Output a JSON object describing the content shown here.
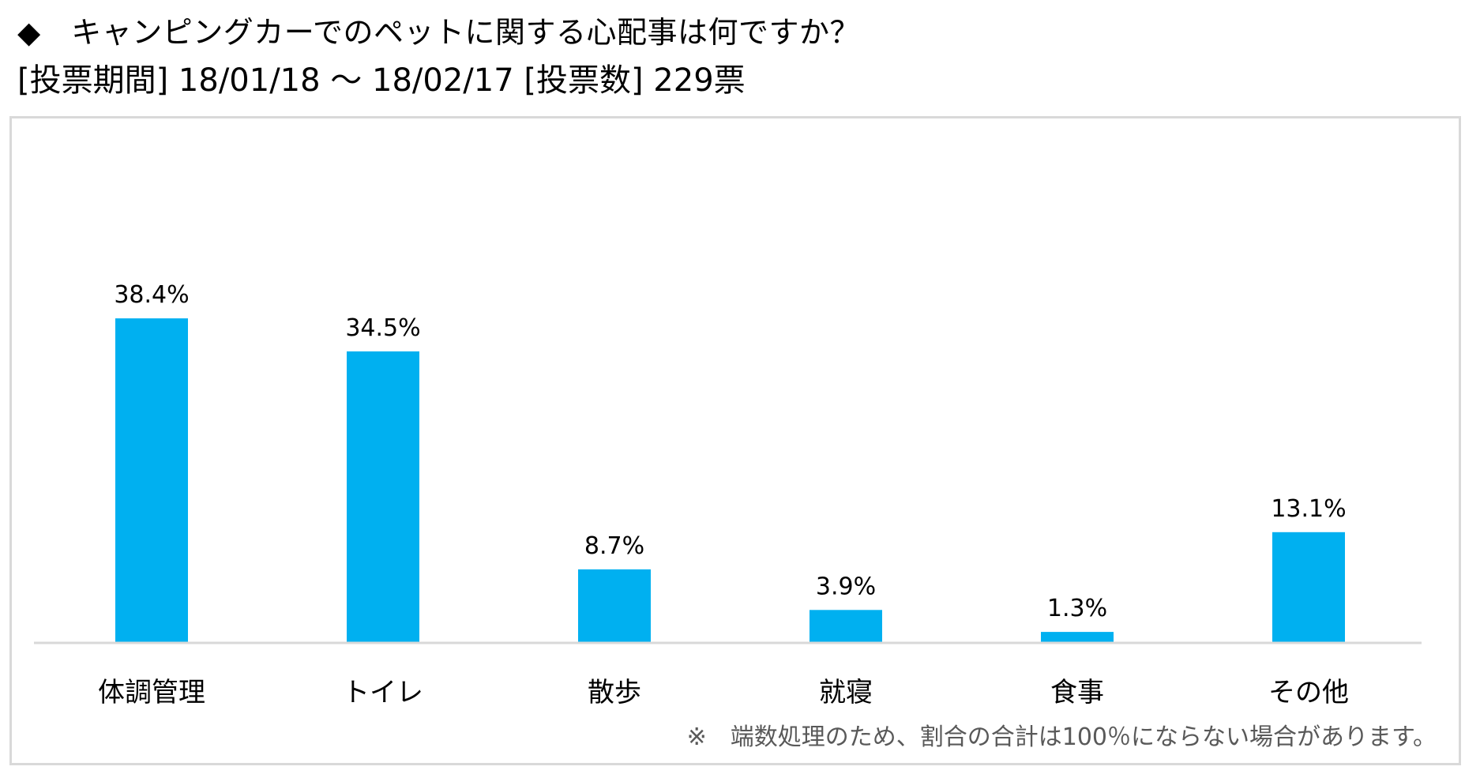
{
  "header": {
    "title_line1": "◆　キャンピングカーでのペットに関する心配事は何ですか？",
    "title_line2": "[投票期間] 18/01/18 ～ 18/02/17 [投票数] 229票"
  },
  "chart_data": {
    "type": "bar",
    "categories": [
      "体調管理",
      "トイレ",
      "散歩",
      "就寝",
      "食事",
      "その他"
    ],
    "values": [
      38.4,
      34.5,
      8.7,
      3.9,
      1.3,
      13.1
    ],
    "data_labels": [
      "38.4%",
      "34.5%",
      "8.7%",
      "3.9%",
      "1.3%",
      "13.1%"
    ],
    "unit": "%",
    "ylim": [
      0,
      40
    ],
    "grid": false,
    "legend": "none",
    "bar_color": "#00B0F0",
    "axis_color": "#d9d9d9"
  },
  "footnote": "※　端数処理のため、割合の合計は100％にならない場合があります。"
}
